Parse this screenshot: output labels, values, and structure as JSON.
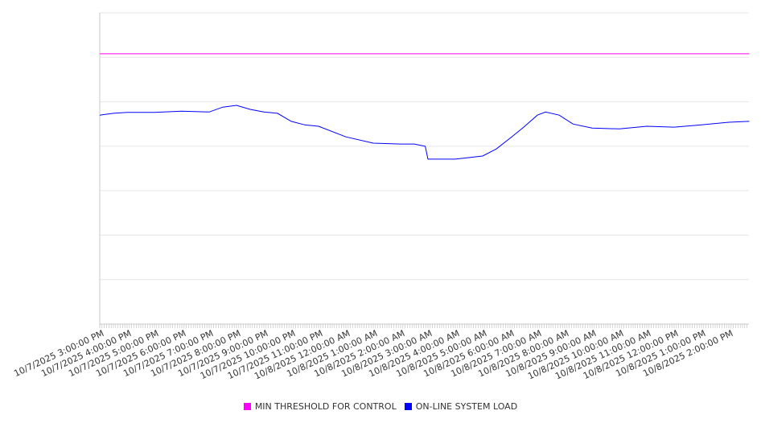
{
  "chart_data": {
    "type": "line",
    "title": "",
    "xlabel": "",
    "ylabel": "",
    "ylim": [
      0,
      7
    ],
    "y_ticks_labeled": false,
    "grid": true,
    "legend_placement": "bottom-center",
    "x_range_hours": [
      0,
      23.75
    ],
    "x_tick_labels": [
      "10/7/2025 3:00:00 PM",
      "10/7/2025 4:00:00 PM",
      "10/7/2025 5:00:00 PM",
      "10/7/2025 6:00:00 PM",
      "10/7/2025 7:00:00 PM",
      "10/7/2025 8:00:00 PM",
      "10/7/2025 9:00:00 PM",
      "10/7/2025 10:00:00 PM",
      "10/7/2025 11:00:00 PM",
      "10/8/2025 12:00:00 AM",
      "10/8/2025 1:00:00 AM",
      "10/8/2025 2:00:00 AM",
      "10/8/2025 3:00:00 AM",
      "10/8/2025 4:00:00 AM",
      "10/8/2025 5:00:00 AM",
      "10/8/2025 6:00:00 AM",
      "10/8/2025 7:00:00 AM",
      "10/8/2025 8:00:00 AM",
      "10/8/2025 9:00:00 AM",
      "10/8/2025 10:00:00 AM",
      "10/8/2025 11:00:00 AM",
      "10/8/2025 12:00:00 PM",
      "10/8/2025 1:00:00 PM",
      "10/8/2025 2:00:00 PM"
    ],
    "series": [
      {
        "name": "MIN THRESHOLD FOR CONTROL",
        "color": "#ff00ff",
        "x": [
          0,
          23.75
        ],
        "values": [
          6.08,
          6.08
        ]
      },
      {
        "name": "ON-LINE SYSTEM LOAD",
        "color": "#0000ff",
        "x": [
          0,
          0.5,
          1,
          2,
          3,
          4,
          4.5,
          5,
          5.5,
          6,
          6.5,
          7,
          7.5,
          8,
          9,
          10,
          11,
          11.5,
          11.9,
          12.0,
          13,
          14,
          14.5,
          15,
          15.5,
          16,
          16.3,
          16.8,
          17.3,
          18,
          19,
          20,
          21,
          22,
          23,
          23.75
        ],
        "values": [
          4.7,
          4.74,
          4.76,
          4.76,
          4.79,
          4.77,
          4.88,
          4.92,
          4.83,
          4.77,
          4.74,
          4.56,
          4.48,
          4.45,
          4.21,
          4.07,
          4.05,
          4.05,
          4.0,
          3.71,
          3.71,
          3.78,
          3.94,
          4.18,
          4.43,
          4.7,
          4.77,
          4.7,
          4.5,
          4.41,
          4.39,
          4.45,
          4.43,
          4.48,
          4.54,
          4.56
        ]
      }
    ]
  }
}
